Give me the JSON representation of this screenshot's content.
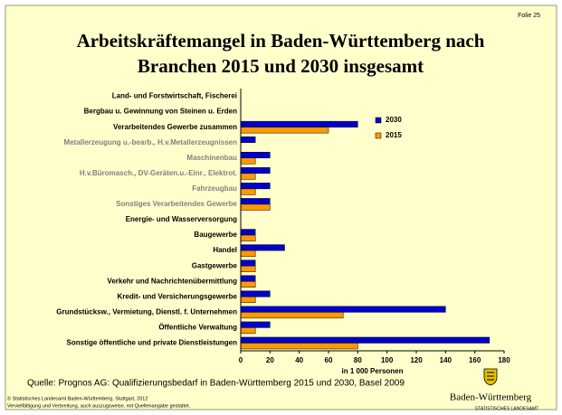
{
  "slide": {
    "folio": "Folie 25",
    "source": "Quelle: Prognos AG: Qualifizierungsbedarf in Baden-Württemberg 2015 und 2030, Basel 2009",
    "copyright": [
      "© Statistisches Landesamt Baden-Württemberg, Stuttgart, 2012",
      "Vervielfältigung und Verbreitung, auch auszugsweise, mit Quellenangabe gestattet."
    ],
    "logo_title": "Baden-Württemberg",
    "logo_subtitle": "STATISTISCHES LANDESAMT"
  },
  "chart_data": {
    "type": "hbar",
    "title": [
      "Arbeitskräftemangel in Baden-Württemberg nach",
      "Branchen 2015 und 2030 insgesamt"
    ],
    "xlabel": "in 1 000 Personen",
    "categories": [
      "Land- und Forstwirtschaft, Fischerei",
      "Bergbau u. Gewinnung von Steinen u. Erden",
      "Verarbeitendes Gewerbe zusammen",
      "Metallerzeugung u.-bearb., H.v.Metallerzeugnissen",
      "Maschinenbau",
      "H.v.Büromasch., DV-Geräten.u.-Einr., Elektrot.",
      "Fahrzeugbau",
      "Sonstiges Verarbeitendes Gewerbe",
      "Energie- und Wasserversorgung",
      "Baugewerbe",
      "Handel",
      "Gastgewerbe",
      "Verkehr und Nachrichtenübermittlung",
      "Kredit- und Versicherungsgewerbe",
      "Grundstücksw., Vermietung, Dienstl. f. Unternehmen",
      "Öffentliche Verwaltung",
      "Sonstige öffentliche und private Dienstleistungen"
    ],
    "label_colors": [
      "#000000",
      "#000000",
      "#000000",
      "#808080",
      "#808080",
      "#808080",
      "#808080",
      "#808080",
      "#000000",
      "#000000",
      "#000000",
      "#000000",
      "#000000",
      "#000000",
      "#000000",
      "#000000",
      "#000000"
    ],
    "series": [
      {
        "name": "2030",
        "color": "#0000cc",
        "values": [
          0,
          0,
          80,
          10,
          20,
          20,
          20,
          20,
          0,
          10,
          30,
          10,
          10,
          20,
          140,
          20,
          170
        ]
      },
      {
        "name": "2015",
        "color": "#ff9900",
        "values": [
          0,
          0,
          60,
          0,
          10,
          10,
          10,
          20,
          0,
          10,
          10,
          10,
          10,
          10,
          70,
          10,
          80
        ]
      }
    ],
    "xlim": [
      0,
      180
    ],
    "xticks": [
      0,
      20,
      40,
      60,
      80,
      100,
      120,
      140,
      160,
      180
    ],
    "legend": "upper right"
  }
}
